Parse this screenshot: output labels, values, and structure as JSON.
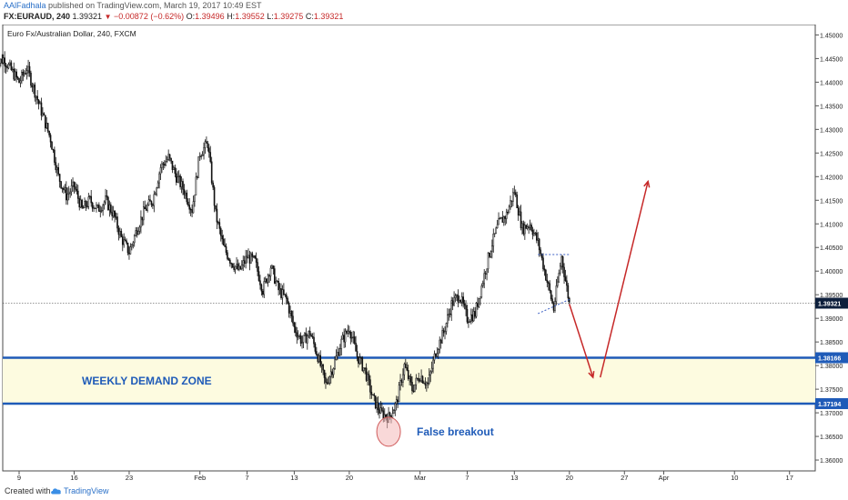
{
  "header": {
    "author": "AAlFadhala",
    "published": "published on TradingView.com, March 19, 2017 10:49 EST",
    "symbol": "FX:EURAUD, 240",
    "last": "1.39321",
    "change_arrow": "▼",
    "change": "−0.00872 (−0.62%)",
    "o_label": "O:",
    "o_value": "1.39496",
    "h_label": "H:",
    "h_value": "1.39552",
    "l_label": "L:",
    "l_value": "1.39275",
    "c_label": "C:",
    "c_value": "1.39321"
  },
  "footer": {
    "created_with": "Created with",
    "brand": "TradingView",
    "brand_icon": "tradingview-cloud-icon"
  },
  "colors": {
    "candle": "#111111",
    "zone_fill": "#fdfbe0",
    "zone_line": "#1f5bb8",
    "arrow": "#c62828",
    "label_blue": "#1f5bb8",
    "price_tag": "#0d1f3c",
    "circle_fill": "#f4b8b8",
    "circle_stroke": "#d05c5c"
  },
  "chart_data": {
    "type": "candlestick",
    "title": "Euro Fx/Australian Dollar, 240, FXCM",
    "x_unit": "date (2017)",
    "x_ticks": [
      {
        "label": "9",
        "date": "2017-01-09"
      },
      {
        "label": "16",
        "date": "2017-01-16"
      },
      {
        "label": "23",
        "date": "2017-01-23"
      },
      {
        "label": "Feb",
        "date": "2017-02-01"
      },
      {
        "label": "7",
        "date": "2017-02-07"
      },
      {
        "label": "13",
        "date": "2017-02-13"
      },
      {
        "label": "20",
        "date": "2017-02-20"
      },
      {
        "label": "Mar",
        "date": "2017-03-01"
      },
      {
        "label": "7",
        "date": "2017-03-07"
      },
      {
        "label": "13",
        "date": "2017-03-13"
      },
      {
        "label": "20",
        "date": "2017-03-20"
      },
      {
        "label": "27",
        "date": "2017-03-27"
      },
      {
        "label": "Apr",
        "date": "2017-04-01"
      },
      {
        "label": "10",
        "date": "2017-04-10"
      },
      {
        "label": "17",
        "date": "2017-04-17"
      }
    ],
    "y_ticks": [
      "1.45000",
      "1.44500",
      "1.44000",
      "1.43500",
      "1.43000",
      "1.42500",
      "1.42000",
      "1.41500",
      "1.41000",
      "1.40500",
      "1.40000",
      "1.39500",
      "1.39000",
      "1.38500",
      "1.38000",
      "1.37500",
      "1.37000",
      "1.36500",
      "1.36000"
    ],
    "ylim": [
      1.3577,
      1.4522
    ],
    "price_path": [
      [
        "2017-01-06",
        1.4435
      ],
      [
        "2017-01-07",
        1.445
      ],
      [
        "2017-01-09",
        1.44
      ],
      [
        "2017-01-10",
        1.443
      ],
      [
        "2017-01-11",
        1.438
      ],
      [
        "2017-01-12",
        1.433
      ],
      [
        "2017-01-13",
        1.428
      ],
      [
        "2017-01-14",
        1.42
      ],
      [
        "2017-01-15",
        1.416
      ],
      [
        "2017-01-16",
        1.418
      ],
      [
        "2017-01-17",
        1.413
      ],
      [
        "2017-01-18",
        1.415
      ],
      [
        "2017-01-19",
        1.413
      ],
      [
        "2017-01-20",
        1.415
      ],
      [
        "2017-01-21",
        1.412
      ],
      [
        "2017-01-22",
        1.407
      ],
      [
        "2017-01-23",
        1.404
      ],
      [
        "2017-01-24",
        1.409
      ],
      [
        "2017-01-25",
        1.413
      ],
      [
        "2017-01-26",
        1.415
      ],
      [
        "2017-01-27",
        1.422
      ],
      [
        "2017-01-28",
        1.424
      ],
      [
        "2017-01-29",
        1.42
      ],
      [
        "2017-01-30",
        1.417
      ],
      [
        "2017-01-31",
        1.413
      ],
      [
        "2017-02-01",
        1.425
      ],
      [
        "2017-02-02",
        1.427
      ],
      [
        "2017-02-03",
        1.412
      ],
      [
        "2017-02-04",
        1.405
      ],
      [
        "2017-02-05",
        1.402
      ],
      [
        "2017-02-06",
        1.4
      ],
      [
        "2017-02-07",
        1.403
      ],
      [
        "2017-02-08",
        1.402
      ],
      [
        "2017-02-09",
        1.396
      ],
      [
        "2017-02-10",
        1.401
      ],
      [
        "2017-02-11",
        1.396
      ],
      [
        "2017-02-12",
        1.394
      ],
      [
        "2017-02-13",
        1.388
      ],
      [
        "2017-02-14",
        1.385
      ],
      [
        "2017-02-15",
        1.387
      ],
      [
        "2017-02-16",
        1.382
      ],
      [
        "2017-02-17",
        1.376
      ],
      [
        "2017-02-18",
        1.38
      ],
      [
        "2017-02-19",
        1.385
      ],
      [
        "2017-02-20",
        1.388
      ],
      [
        "2017-02-21",
        1.382
      ],
      [
        "2017-02-22",
        1.379
      ],
      [
        "2017-02-23",
        1.373
      ],
      [
        "2017-02-24",
        1.37
      ],
      [
        "2017-02-25",
        1.369
      ],
      [
        "2017-02-26",
        1.372
      ],
      [
        "2017-02-27",
        1.38
      ],
      [
        "2017-02-28",
        1.375
      ],
      [
        "2017-03-01",
        1.378
      ],
      [
        "2017-03-02",
        1.376
      ],
      [
        "2017-03-03",
        1.383
      ],
      [
        "2017-03-04",
        1.387
      ],
      [
        "2017-03-05",
        1.393
      ],
      [
        "2017-03-06",
        1.395
      ],
      [
        "2017-03-07",
        1.39
      ],
      [
        "2017-03-08",
        1.391
      ],
      [
        "2017-03-09",
        1.398
      ],
      [
        "2017-03-10",
        1.405
      ],
      [
        "2017-03-11",
        1.41
      ],
      [
        "2017-03-12",
        1.412
      ],
      [
        "2017-03-13",
        1.417
      ],
      [
        "2017-03-14",
        1.409
      ],
      [
        "2017-03-15",
        1.41
      ],
      [
        "2017-03-16",
        1.406
      ],
      [
        "2017-03-17",
        1.399
      ],
      [
        "2017-03-18",
        1.392
      ],
      [
        "2017-03-19",
        1.403
      ],
      [
        "2017-03-20",
        1.3932
      ]
    ],
    "last_price": "1.39321",
    "demand_zone": {
      "label": "WEEKLY DEMAND ZONE",
      "upper": 1.38166,
      "lower": 1.37194,
      "upper_label": "1.38166",
      "lower_label": "1.37194"
    },
    "annotations": {
      "false_breakout": "False breakout",
      "projection": [
        [
          "2017-03-20",
          1.393
        ],
        [
          "2017-03-23",
          1.3775
        ],
        [
          "2017-03-30",
          1.419
        ]
      ],
      "wedge": [
        [
          [
            "2017-03-16",
            1.4035
          ],
          [
            "2017-03-20",
            1.4035
          ]
        ],
        [
          [
            "2017-03-16",
            1.391
          ],
          [
            "2017-03-20",
            1.394
          ]
        ]
      ]
    }
  }
}
